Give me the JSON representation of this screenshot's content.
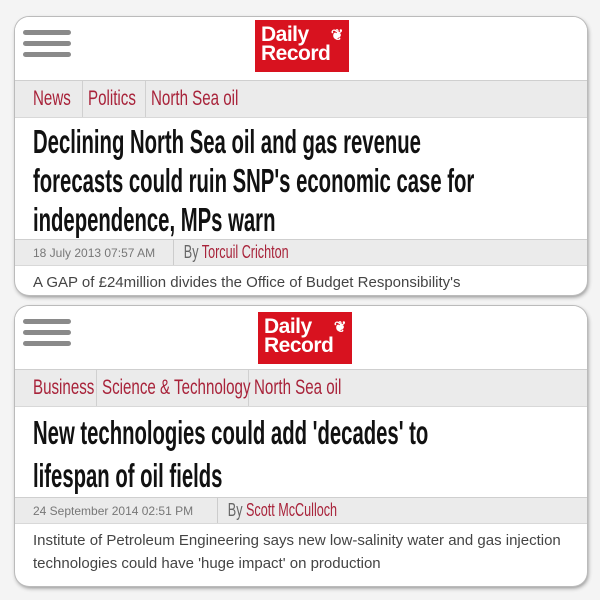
{
  "articles": [
    {
      "brand": {
        "line1": "Daily",
        "line2": "Record",
        "color": "#d8121f",
        "logo_icon": "lion-rampant-icon"
      },
      "tags": [
        "News",
        "Politics",
        "North Sea oil"
      ],
      "headline_lines": [
        "Declining North Sea oil and gas revenue",
        "forecasts could ruin SNP's economic case for",
        "independence, MPs warn"
      ],
      "date": "18 July 2013 07:57 AM",
      "by": "By",
      "author": "Torcuil Crichton",
      "excerpt": "A GAP of £24million divides the Office of Budget Responsibility's"
    },
    {
      "brand": {
        "line1": "Daily",
        "line2": "Record",
        "color": "#d8121f",
        "logo_icon": "lion-rampant-icon"
      },
      "tags": [
        "Business",
        "Science & Technology",
        "North Sea oil"
      ],
      "headline_lines": [
        "New technologies could add 'decades' to",
        "lifespan of oil fields"
      ],
      "date": "24 September 2014 02:51 PM",
      "by": "By",
      "author": "Scott McCulloch",
      "excerpt": "Institute of Petroleum Engineering says new low-salinity water and gas injection technologies could have 'huge impact' on production"
    }
  ],
  "accent": "#a8233a"
}
